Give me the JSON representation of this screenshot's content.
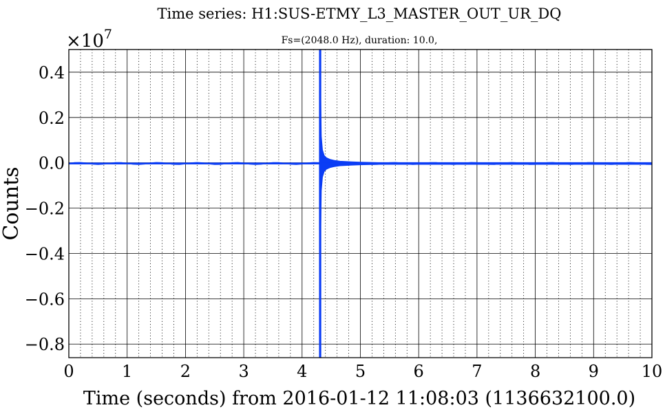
{
  "chart_data": {
    "type": "line",
    "title": "Time series:  H1:SUS-ETMY_L3_MASTER_OUT_UR_DQ",
    "subtitle": "Fs=(2048.0 Hz), duration: 10.0,",
    "xlabel": "Time (seconds) from 2016-01-12 11:08:03 (1136632100.0)",
    "ylabel": "Counts",
    "y_multiplier": "×10",
    "y_multiplier_exp": "7",
    "xlim": [
      0,
      10
    ],
    "ylim": [
      -0.86,
      0.5
    ],
    "y_scale_factor": 10000000,
    "x_ticks": [
      0,
      1,
      2,
      3,
      4,
      5,
      6,
      7,
      8,
      9,
      10
    ],
    "x_tick_labels": [
      "0",
      "1",
      "2",
      "3",
      "4",
      "5",
      "6",
      "7",
      "8",
      "9",
      "10"
    ],
    "y_ticks": [
      -0.8,
      -0.6,
      -0.4,
      -0.2,
      0.0,
      0.2,
      0.4
    ],
    "y_tick_labels": [
      "−0.8",
      "−0.6",
      "−0.4",
      "−0.2",
      "0.0",
      "0.2",
      "0.4"
    ],
    "grid": {
      "major": true,
      "minor_x": true,
      "minor_x_step": 0.2
    },
    "line_color": "#0b3df5",
    "series": [
      {
        "name": "",
        "baseline": -0.003,
        "glitch_time": 4.31,
        "glitch_peak": 0.5,
        "glitch_trough": -0.86,
        "x": [
          0,
          4.28,
          4.3,
          4.305,
          4.31,
          4.315,
          4.32,
          4.33,
          4.35,
          4.38,
          4.42,
          4.48,
          4.55,
          4.65,
          4.8,
          5.0,
          5.3,
          10
        ],
        "envelope": [
          0.004,
          0.004,
          0.05,
          0.3,
          0.5,
          -0.86,
          0.3,
          0.12,
          0.06,
          0.035,
          0.025,
          0.018,
          0.014,
          0.01,
          0.008,
          0.006,
          0.004,
          0.004
        ]
      }
    ]
  }
}
